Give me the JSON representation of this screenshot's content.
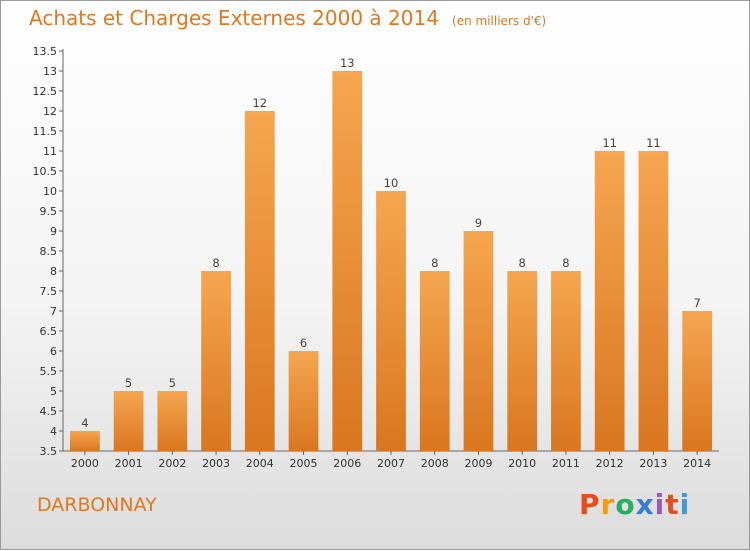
{
  "header": {
    "title": "Achats et Charges Externes 2000 à 2014",
    "unit": "(en milliers d'€)"
  },
  "footer": {
    "city": "DARBONNAY",
    "logo_letters": [
      "P",
      "r",
      "o",
      "x",
      "i",
      "t",
      "i"
    ],
    "logo_colors": [
      "#e74c1a",
      "#f39c12",
      "#27ae60",
      "#3a7bd5",
      "#9b59b6",
      "#e74c1a",
      "#3a9ad9"
    ]
  },
  "colors": {
    "bar_top": "#f6a650",
    "bar_bottom": "#d97720",
    "title": "#e07820"
  },
  "chart_data": {
    "type": "bar",
    "title": "Achats et Charges Externes 2000 à 2014",
    "subtitle": "(en milliers d'€)",
    "xlabel": "",
    "ylabel": "",
    "categories": [
      "2000",
      "2001",
      "2002",
      "2003",
      "2004",
      "2005",
      "2006",
      "2007",
      "2008",
      "2009",
      "2010",
      "2011",
      "2012",
      "2013",
      "2014"
    ],
    "values": [
      4,
      5,
      5,
      8,
      12,
      6,
      13,
      10,
      8,
      9,
      8,
      8,
      11,
      11,
      7
    ],
    "ylim": [
      3.5,
      13.5
    ],
    "yticks": [
      "3.5",
      "4",
      "4.5",
      "5",
      "5.5",
      "6",
      "6.5",
      "7",
      "7.5",
      "8",
      "8.5",
      "9",
      "9.5",
      "10",
      "10.5",
      "11",
      "11.5",
      "12",
      "12.5",
      "13",
      "13.5"
    ],
    "grid": false,
    "legend": "none"
  }
}
